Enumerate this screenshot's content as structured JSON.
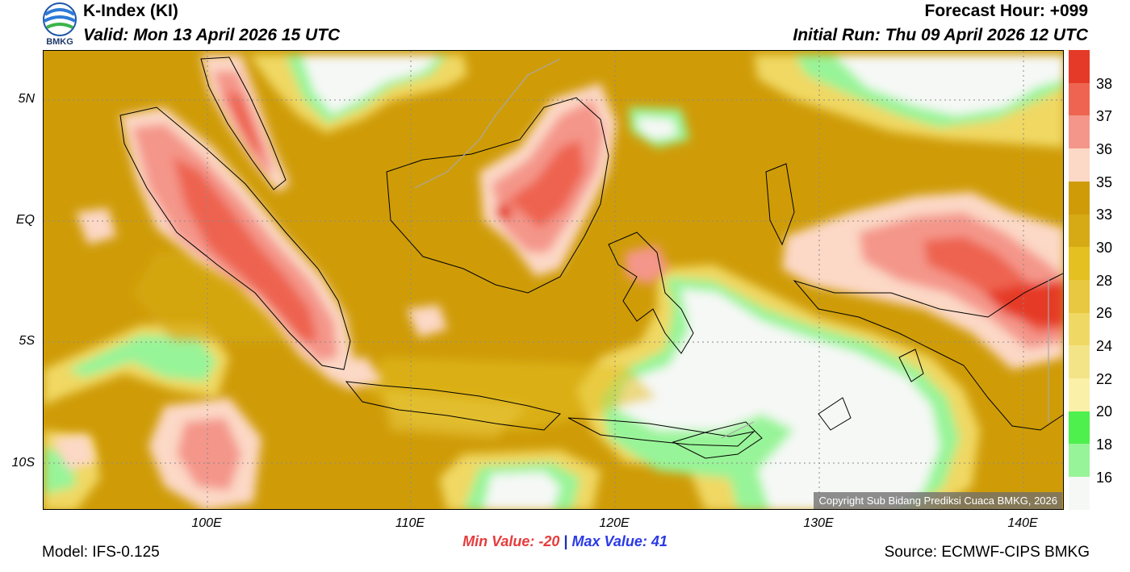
{
  "header": {
    "title": "K-Index (KI)",
    "valid": "Valid: Mon 13 April 2026 15 UTC",
    "forecast_hour": "Forecast Hour: +099",
    "initial_run": "Initial Run: Thu 09 April 2026 12 UTC",
    "logo_text": "BMKG"
  },
  "axes": {
    "y_ticks": [
      "5N",
      "EQ",
      "5S",
      "10S"
    ],
    "x_ticks": [
      "100E",
      "110E",
      "120E",
      "130E",
      "140E"
    ]
  },
  "colorbar": {
    "labels": [
      "38",
      "37",
      "36",
      "35",
      "33",
      "30",
      "28",
      "26",
      "24",
      "22",
      "20",
      "18",
      "16"
    ],
    "colors": [
      "#e53a28",
      "#ee6450",
      "#f4968a",
      "#fcd8c6",
      "#cf9c08",
      "#d6aa14",
      "#e4c020",
      "#e8c840",
      "#f0d864",
      "#f4e488",
      "#faf0a8",
      "#4ef04e",
      "#98f498",
      "#f6f8f6"
    ]
  },
  "map": {
    "copyright": "Copyright Sub Bidang Prediksi Cuaca BMKG, 2026"
  },
  "footer": {
    "model": "Model: IFS-0.125",
    "source": "Source: ECMWF-CIPS BMKG",
    "min_label": "Min Value: -20",
    "separator": "|",
    "max_label": "Max Value:  41"
  }
}
